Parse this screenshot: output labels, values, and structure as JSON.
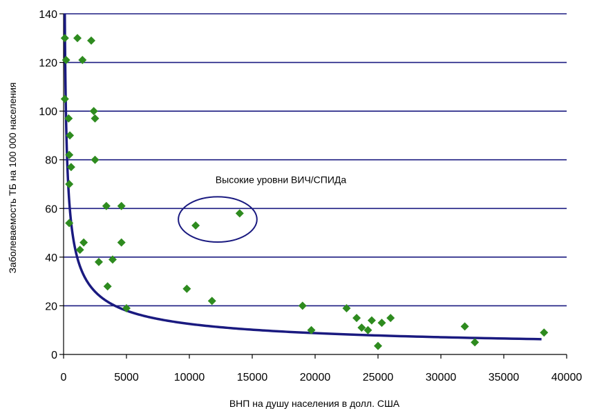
{
  "chart_data": {
    "type": "scatter",
    "xlabel": "ВНП на душу населения в долл. США",
    "ylabel": "Заболеваемость ТБ на 100 000 населения",
    "xlim": [
      0,
      40000
    ],
    "ylim": [
      0,
      140
    ],
    "x_ticks": [
      0,
      5000,
      10000,
      15000,
      20000,
      25000,
      30000,
      35000,
      40000
    ],
    "y_ticks": [
      0,
      20,
      40,
      60,
      80,
      100,
      120,
      140
    ],
    "grid": "horizontal",
    "colors": {
      "points": "#2e8b1f",
      "trend": "#1a1a80",
      "grid": "#1a1a80",
      "annotation": "#1a1a80"
    },
    "series": [
      {
        "marker": "diamond",
        "points": [
          [
            100,
            130
          ],
          [
            200,
            121
          ],
          [
            100,
            105
          ],
          [
            400,
            97
          ],
          [
            500,
            90
          ],
          [
            450,
            82
          ],
          [
            600,
            77
          ],
          [
            450,
            70
          ],
          [
            450,
            54
          ],
          [
            1100,
            130
          ],
          [
            1500,
            121
          ],
          [
            2200,
            129
          ],
          [
            2400,
            100
          ],
          [
            2500,
            97
          ],
          [
            2500,
            80
          ],
          [
            1300,
            43
          ],
          [
            1600,
            46
          ],
          [
            2800,
            38
          ],
          [
            3400,
            61
          ],
          [
            4600,
            61
          ],
          [
            4600,
            46
          ],
          [
            3500,
            28
          ],
          [
            3900,
            39
          ],
          [
            5000,
            19
          ],
          [
            9800,
            27
          ],
          [
            10500,
            53
          ],
          [
            11800,
            22
          ],
          [
            14000,
            58
          ],
          [
            19000,
            20
          ],
          [
            19700,
            10
          ],
          [
            22500,
            19
          ],
          [
            23300,
            15
          ],
          [
            23700,
            11
          ],
          [
            24200,
            10
          ],
          [
            24500,
            14
          ],
          [
            25000,
            3.5
          ],
          [
            25300,
            13
          ],
          [
            26000,
            15
          ],
          [
            31900,
            11.5
          ],
          [
            32700,
            5
          ],
          [
            38200,
            9
          ]
        ]
      }
    ],
    "trendline": {
      "type": "power",
      "coefficient": 1510,
      "exponent": -0.52,
      "x_range": [
        65,
        38000
      ]
    },
    "annotations": [
      {
        "text": "Высокие уровни ВИЧ/СПИДа",
        "encircles": [
          [
            10500,
            53
          ],
          [
            14000,
            58
          ]
        ]
      }
    ]
  }
}
